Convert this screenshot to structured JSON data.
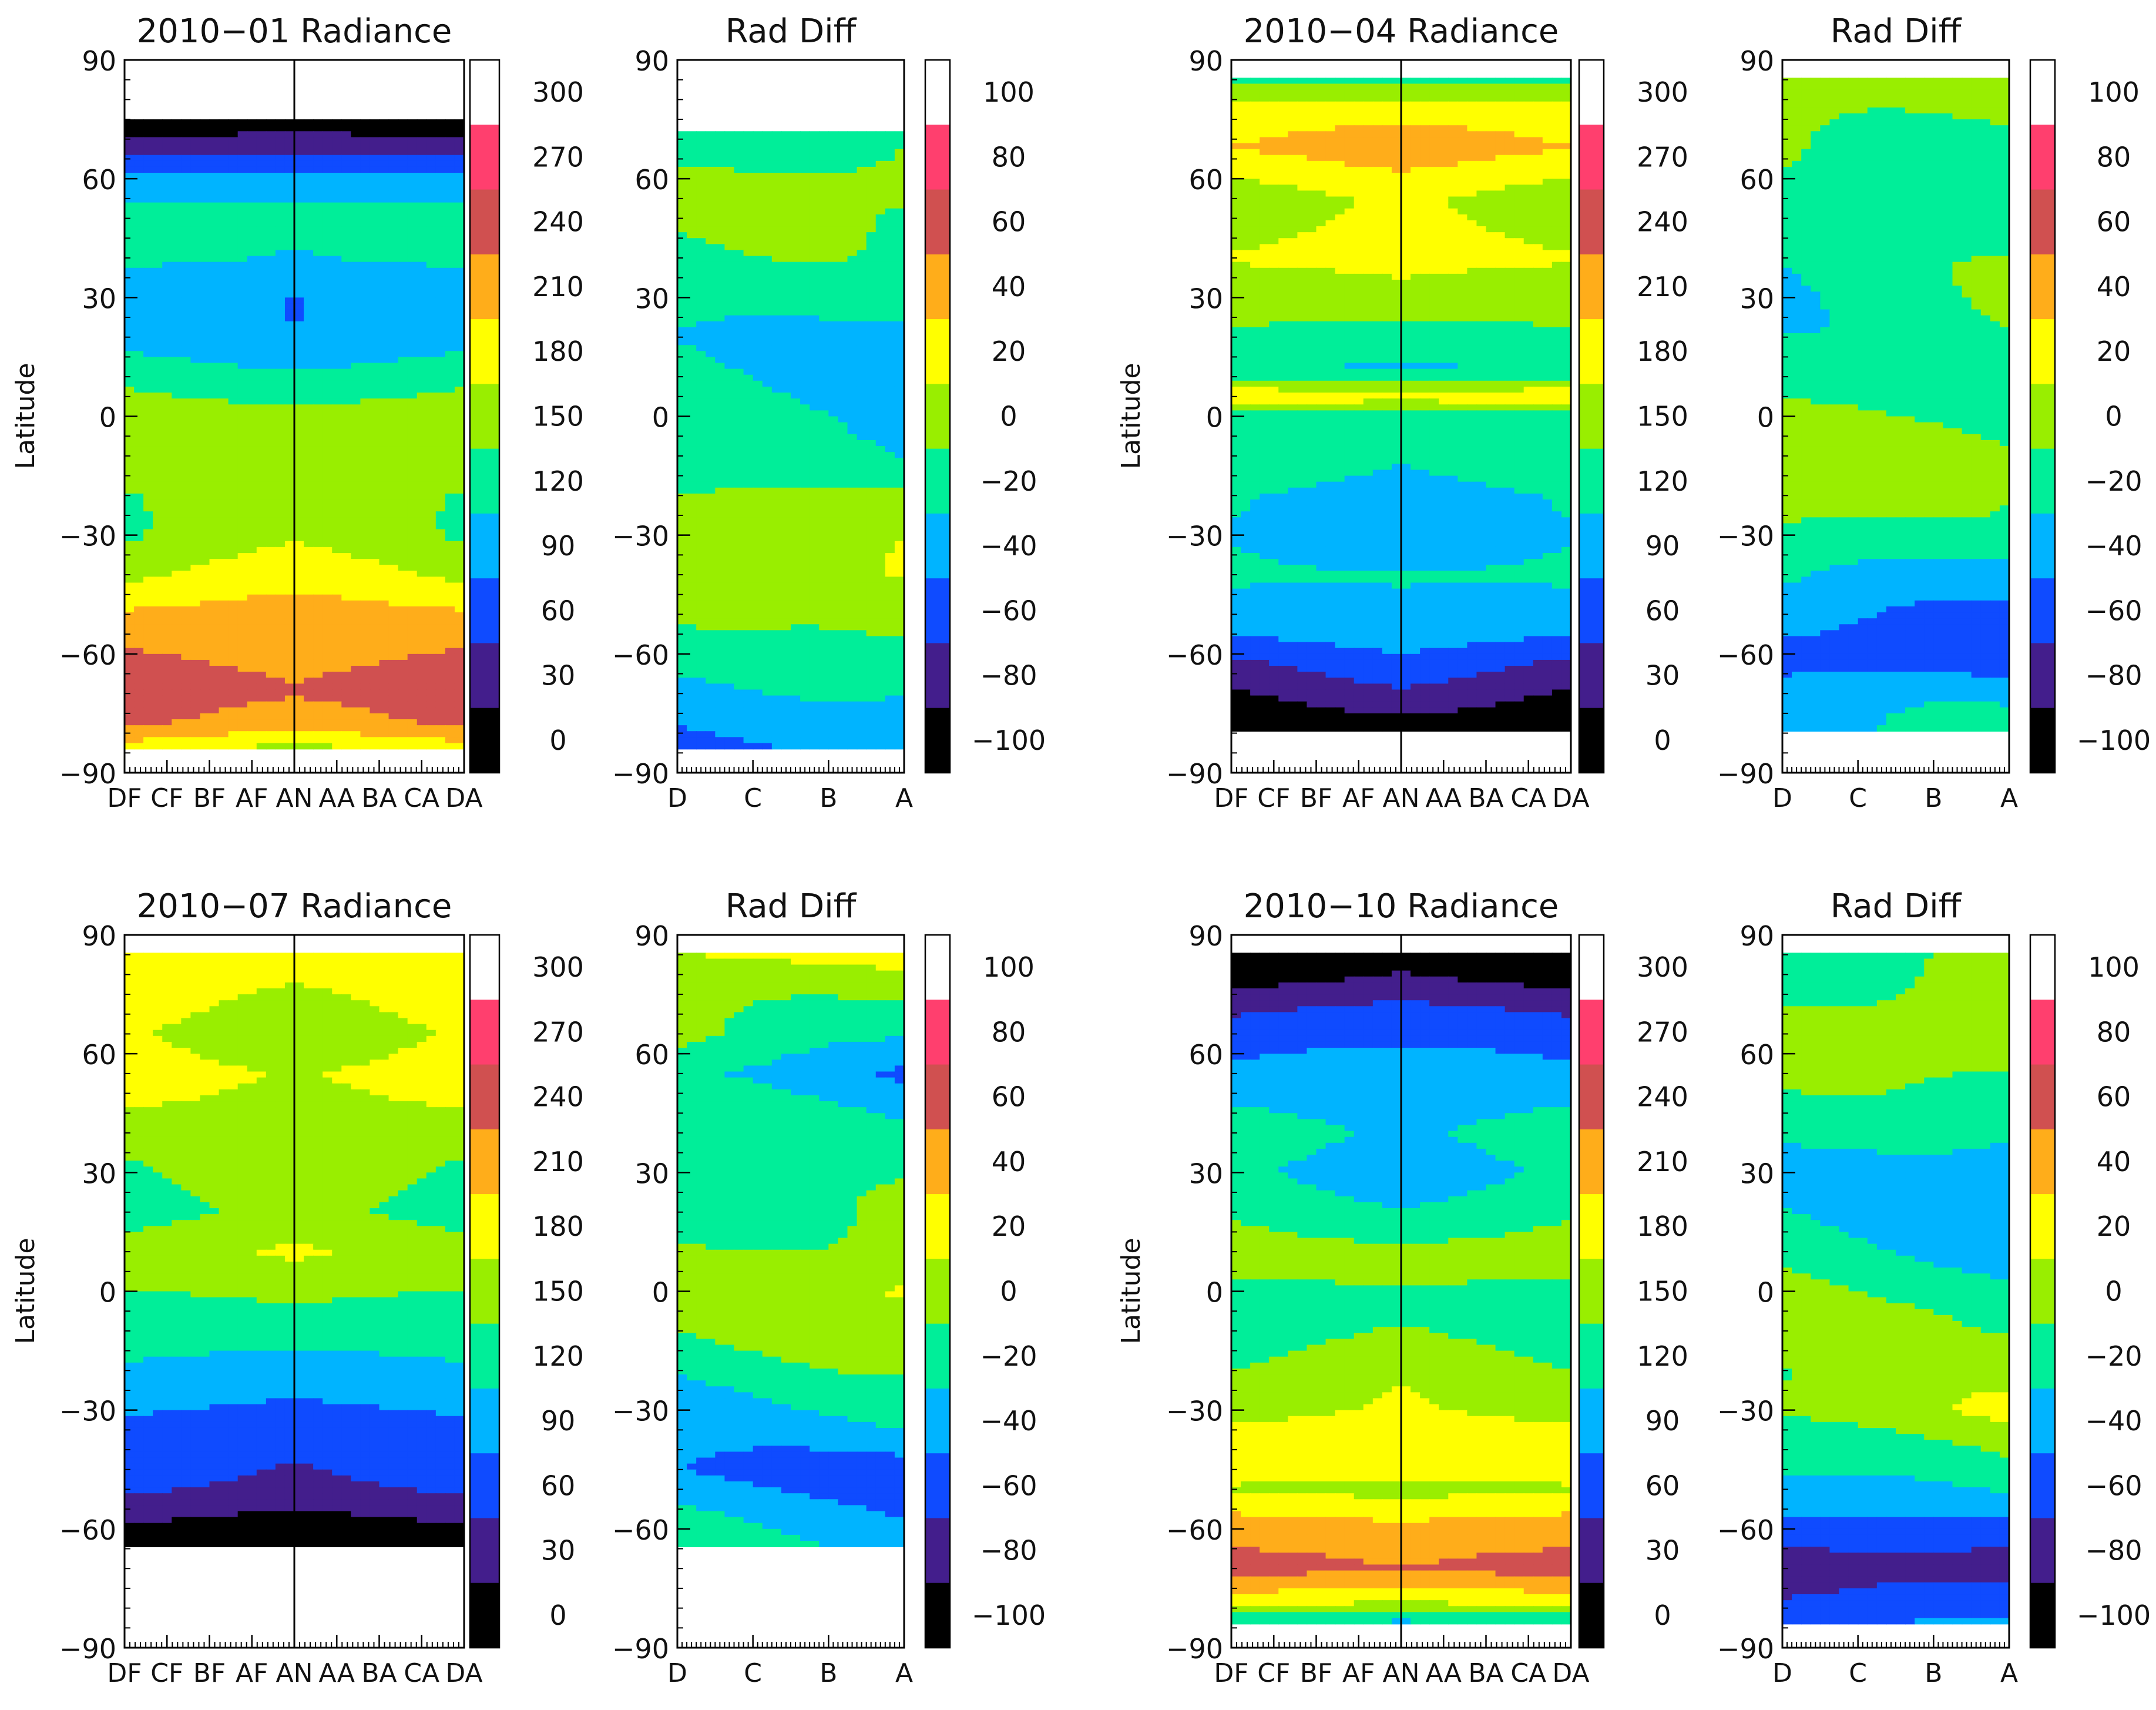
{
  "figure": {
    "ylabel": "Latitude"
  },
  "radiance_scale": {
    "ticks": [
      "300",
      "270",
      "240",
      "210",
      "180",
      "150",
      "120",
      "90",
      "60",
      "30",
      "0"
    ],
    "colors": [
      "#ffffff",
      "#ff3f6e",
      "#d05050",
      "#ffad1a",
      "#ffff00",
      "#99ee00",
      "#00ee99",
      "#00b4ff",
      "#0f4bff",
      "#431e8c",
      "#000000"
    ]
  },
  "diff_scale": {
    "ticks": [
      "100",
      "80",
      "60",
      "40",
      "20",
      "0",
      "−20",
      "−40",
      "−60",
      "−80",
      "−100"
    ],
    "colors": [
      "#ffffff",
      "#ff3f6e",
      "#d05050",
      "#ffad1a",
      "#ffff00",
      "#99ee00",
      "#00ee99",
      "#00b4ff",
      "#0f4bff",
      "#431e8c",
      "#000000"
    ]
  },
  "radiance_xticks": [
    "DF",
    "CF",
    "BF",
    "AF",
    "AN",
    "AA",
    "BA",
    "CA",
    "DA"
  ],
  "diff_xticks": [
    "D",
    "C",
    "B",
    "A"
  ],
  "yticks": [
    "90",
    "60",
    "30",
    "0",
    "−30",
    "−60",
    "−90"
  ],
  "chart_data": [
    {
      "type": "heatmap",
      "title": "2010−01 Radiance",
      "ylabel": "Latitude",
      "ylim": [
        -90,
        90
      ],
      "x_categories": [
        "DF",
        "CF",
        "BF",
        "AF",
        "AN",
        "AA",
        "BA",
        "CA",
        "DA"
      ],
      "colorbar": {
        "min": 0,
        "max": 300,
        "step": 30
      },
      "lat_profile": [
        {
          "lat": 90,
          "value": null
        },
        {
          "lat": 80,
          "value": null
        },
        {
          "lat": 75,
          "value": 5
        },
        {
          "lat": 68,
          "value": 45
        },
        {
          "lat": 60,
          "value": 95
        },
        {
          "lat": 50,
          "value": 135
        },
        {
          "lat": 40,
          "value": 125
        },
        {
          "lat": 30,
          "value": 100
        },
        {
          "lat": 20,
          "value": 100
        },
        {
          "lat": 10,
          "value": 130
        },
        {
          "lat": 0,
          "value": 160
        },
        {
          "lat": -10,
          "value": 165
        },
        {
          "lat": -20,
          "value": 160
        },
        {
          "lat": -30,
          "value": 165
        },
        {
          "lat": -40,
          "value": 190
        },
        {
          "lat": -50,
          "value": 220
        },
        {
          "lat": -60,
          "value": 235
        },
        {
          "lat": -70,
          "value": 250
        },
        {
          "lat": -78,
          "value": 230
        },
        {
          "lat": -84,
          "value": 180
        },
        {
          "lat": -86,
          "value": null
        },
        {
          "lat": -90,
          "value": null
        }
      ]
    },
    {
      "type": "heatmap",
      "title": "Rad Diff",
      "ylim": [
        -90,
        90
      ],
      "x_categories": [
        "D",
        "C",
        "B",
        "A"
      ],
      "colorbar": {
        "min": -100,
        "max": 100,
        "step": 20
      },
      "lat_profile": [
        {
          "lat": 90,
          "value": null
        },
        {
          "lat": 76,
          "value": null
        },
        {
          "lat": 72,
          "value": -10
        },
        {
          "lat": 60,
          "value": 5
        },
        {
          "lat": 40,
          "value": -5
        },
        {
          "lat": 30,
          "value": -10
        },
        {
          "lat": 20,
          "value": -25
        },
        {
          "lat": 0,
          "value": -15
        },
        {
          "lat": -15,
          "value": -15
        },
        {
          "lat": -20,
          "value": 5
        },
        {
          "lat": -40,
          "value": 15
        },
        {
          "lat": -55,
          "value": 0
        },
        {
          "lat": -70,
          "value": -25
        },
        {
          "lat": -84,
          "value": -40
        },
        {
          "lat": -86,
          "value": null
        },
        {
          "lat": -90,
          "value": null
        }
      ]
    },
    {
      "type": "heatmap",
      "title": "2010−04 Radiance",
      "ylabel": "Latitude",
      "ylim": [
        -90,
        90
      ],
      "x_categories": [
        "DF",
        "CF",
        "BF",
        "AF",
        "AN",
        "AA",
        "BA",
        "CA",
        "DA"
      ],
      "colorbar": {
        "min": 0,
        "max": 300,
        "step": 30
      },
      "lat_profile": [
        {
          "lat": 90,
          "value": null
        },
        {
          "lat": 85,
          "value": 140
        },
        {
          "lat": 78,
          "value": 195
        },
        {
          "lat": 68,
          "value": 225
        },
        {
          "lat": 55,
          "value": 175
        },
        {
          "lat": 40,
          "value": 185
        },
        {
          "lat": 30,
          "value": 160
        },
        {
          "lat": 20,
          "value": 140
        },
        {
          "lat": 12,
          "value": 120
        },
        {
          "lat": 5,
          "value": 200
        },
        {
          "lat": 0,
          "value": 140
        },
        {
          "lat": -10,
          "value": 135
        },
        {
          "lat": -20,
          "value": 115
        },
        {
          "lat": -30,
          "value": 105
        },
        {
          "lat": -40,
          "value": 120
        },
        {
          "lat": -55,
          "value": 100
        },
        {
          "lat": -62,
          "value": 70
        },
        {
          "lat": -70,
          "value": 45
        },
        {
          "lat": -76,
          "value": 20
        },
        {
          "lat": -80,
          "value": 5
        },
        {
          "lat": -81,
          "value": null
        },
        {
          "lat": -90,
          "value": null
        }
      ]
    },
    {
      "type": "heatmap",
      "title": "Rad Diff",
      "ylim": [
        -90,
        90
      ],
      "x_categories": [
        "D",
        "C",
        "B",
        "A"
      ],
      "colorbar": {
        "min": -100,
        "max": 100,
        "step": 20
      },
      "lat_profile": [
        {
          "lat": 90,
          "value": null
        },
        {
          "lat": 85,
          "value": 20
        },
        {
          "lat": 78,
          "value": 5
        },
        {
          "lat": 60,
          "value": -5
        },
        {
          "lat": 40,
          "value": -10
        },
        {
          "lat": 20,
          "value": -10
        },
        {
          "lat": 5,
          "value": -5
        },
        {
          "lat": -10,
          "value": 10
        },
        {
          "lat": -20,
          "value": 5
        },
        {
          "lat": -30,
          "value": -5
        },
        {
          "lat": -45,
          "value": -30
        },
        {
          "lat": -60,
          "value": -55
        },
        {
          "lat": -70,
          "value": -30
        },
        {
          "lat": -80,
          "value": -20
        },
        {
          "lat": -81,
          "value": null
        },
        {
          "lat": -90,
          "value": null
        }
      ]
    },
    {
      "type": "heatmap",
      "title": "2010−07 Radiance",
      "ylabel": "Latitude",
      "ylim": [
        -90,
        90
      ],
      "x_categories": [
        "DF",
        "CF",
        "BF",
        "AF",
        "AN",
        "AA",
        "BA",
        "CA",
        "DA"
      ],
      "colorbar": {
        "min": 0,
        "max": 300,
        "step": 30
      },
      "lat_profile": [
        {
          "lat": 90,
          "value": null
        },
        {
          "lat": 85,
          "value": 200
        },
        {
          "lat": 75,
          "value": 185
        },
        {
          "lat": 65,
          "value": 165
        },
        {
          "lat": 55,
          "value": 185
        },
        {
          "lat": 40,
          "value": 170
        },
        {
          "lat": 30,
          "value": 160
        },
        {
          "lat": 20,
          "value": 150
        },
        {
          "lat": 10,
          "value": 175
        },
        {
          "lat": 0,
          "value": 150
        },
        {
          "lat": -10,
          "value": 130
        },
        {
          "lat": -20,
          "value": 110
        },
        {
          "lat": -30,
          "value": 90
        },
        {
          "lat": -40,
          "value": 75
        },
        {
          "lat": -50,
          "value": 60
        },
        {
          "lat": -58,
          "value": 25
        },
        {
          "lat": -65,
          "value": 5
        },
        {
          "lat": -66,
          "value": null
        },
        {
          "lat": -90,
          "value": null
        }
      ]
    },
    {
      "type": "heatmap",
      "title": "Rad Diff",
      "ylim": [
        -90,
        90
      ],
      "x_categories": [
        "D",
        "C",
        "B",
        "A"
      ],
      "colorbar": {
        "min": -100,
        "max": 100,
        "step": 20
      },
      "lat_profile": [
        {
          "lat": 90,
          "value": null
        },
        {
          "lat": 85,
          "value": 25
        },
        {
          "lat": 78,
          "value": 10
        },
        {
          "lat": 65,
          "value": -5
        },
        {
          "lat": 55,
          "value": -30
        },
        {
          "lat": 40,
          "value": -10
        },
        {
          "lat": 28,
          "value": -5
        },
        {
          "lat": 10,
          "value": 5
        },
        {
          "lat": 0,
          "value": 20
        },
        {
          "lat": -10,
          "value": 5
        },
        {
          "lat": -25,
          "value": -15
        },
        {
          "lat": -35,
          "value": -25
        },
        {
          "lat": -45,
          "value": -45
        },
        {
          "lat": -55,
          "value": -30
        },
        {
          "lat": -65,
          "value": -20
        },
        {
          "lat": -66,
          "value": null
        },
        {
          "lat": -90,
          "value": null
        }
      ]
    },
    {
      "type": "heatmap",
      "title": "2010−10 Radiance",
      "ylabel": "Latitude",
      "ylim": [
        -90,
        90
      ],
      "x_categories": [
        "DF",
        "CF",
        "BF",
        "AF",
        "AN",
        "AA",
        "BA",
        "CA",
        "DA"
      ],
      "colorbar": {
        "min": 0,
        "max": 300,
        "step": 30
      },
      "lat_profile": [
        {
          "lat": 90,
          "value": null
        },
        {
          "lat": 85,
          "value": 5
        },
        {
          "lat": 78,
          "value": 30
        },
        {
          "lat": 70,
          "value": 70
        },
        {
          "lat": 60,
          "value": 95
        },
        {
          "lat": 50,
          "value": 110
        },
        {
          "lat": 40,
          "value": 125
        },
        {
          "lat": 30,
          "value": 110
        },
        {
          "lat": 20,
          "value": 130
        },
        {
          "lat": 10,
          "value": 160
        },
        {
          "lat": 5,
          "value": 175
        },
        {
          "lat": 0,
          "value": 130
        },
        {
          "lat": -10,
          "value": 145
        },
        {
          "lat": -20,
          "value": 165
        },
        {
          "lat": -30,
          "value": 175
        },
        {
          "lat": -40,
          "value": 200
        },
        {
          "lat": -50,
          "value": 170
        },
        {
          "lat": -60,
          "value": 225
        },
        {
          "lat": -70,
          "value": 250
        },
        {
          "lat": -78,
          "value": 195
        },
        {
          "lat": -84,
          "value": 120
        },
        {
          "lat": -85,
          "value": null
        },
        {
          "lat": -90,
          "value": null
        }
      ]
    },
    {
      "type": "heatmap",
      "title": "Rad Diff",
      "ylim": [
        -90,
        90
      ],
      "x_categories": [
        "D",
        "C",
        "B",
        "A"
      ],
      "colorbar": {
        "min": -100,
        "max": 100,
        "step": 20
      },
      "lat_profile": [
        {
          "lat": 90,
          "value": null
        },
        {
          "lat": 85,
          "value": -5
        },
        {
          "lat": 75,
          "value": 5
        },
        {
          "lat": 65,
          "value": 15
        },
        {
          "lat": 50,
          "value": -5
        },
        {
          "lat": 30,
          "value": -30
        },
        {
          "lat": 10,
          "value": -15
        },
        {
          "lat": -5,
          "value": 0
        },
        {
          "lat": -20,
          "value": 5
        },
        {
          "lat": -30,
          "value": 15
        },
        {
          "lat": -40,
          "value": -5
        },
        {
          "lat": -50,
          "value": -20
        },
        {
          "lat": -60,
          "value": -50
        },
        {
          "lat": -70,
          "value": -75
        },
        {
          "lat": -84,
          "value": -40
        },
        {
          "lat": -85,
          "value": null
        },
        {
          "lat": -90,
          "value": null
        }
      ]
    }
  ]
}
